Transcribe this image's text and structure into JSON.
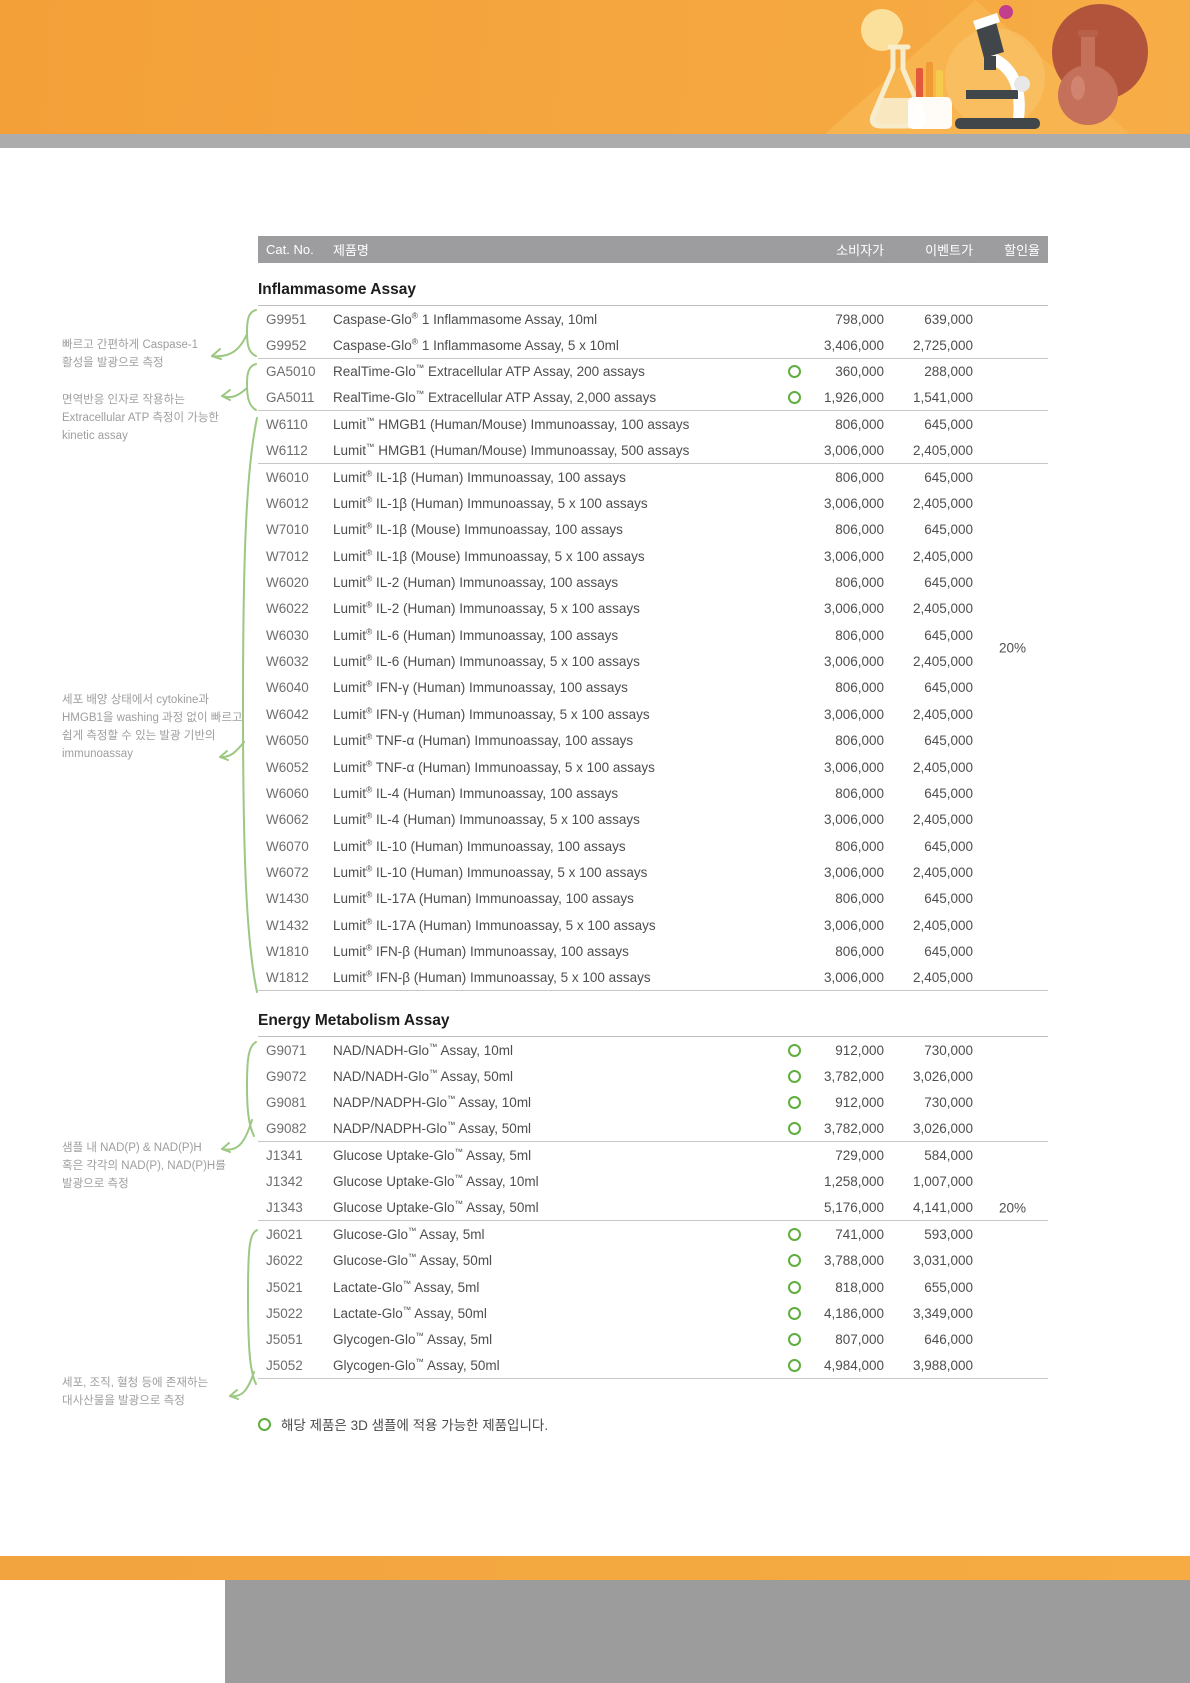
{
  "table": {
    "columns": [
      "Cat. No.",
      "제품명",
      "소비자가",
      "이벤트가",
      "할인율"
    ]
  },
  "sections": [
    {
      "title": "Inflammasome Assay",
      "discount": "20%",
      "rows": [
        {
          "cat": "G9951",
          "name": "Caspase-Glo® 1 Inflammasome Assay, 10ml",
          "consumer_price": "798,000",
          "event_price": "639,000",
          "is_3d": false,
          "group_end": false
        },
        {
          "cat": "G9952",
          "name": "Caspase-Glo® 1 Inflammasome Assay, 5 x 10ml",
          "consumer_price": "3,406,000",
          "event_price": "2,725,000",
          "is_3d": false,
          "group_end": true
        },
        {
          "cat": "GA5010",
          "name": "RealTime-Glo™ Extracellular ATP Assay, 200 assays",
          "consumer_price": "360,000",
          "event_price": "288,000",
          "is_3d": true,
          "group_end": false
        },
        {
          "cat": "GA5011",
          "name": "RealTime-Glo™ Extracellular ATP Assay, 2,000 assays",
          "consumer_price": "1,926,000",
          "event_price": "1,541,000",
          "is_3d": true,
          "group_end": true
        },
        {
          "cat": "W6110",
          "name": "Lumit™ HMGB1 (Human/Mouse) Immunoassay, 100 assays",
          "consumer_price": "806,000",
          "event_price": "645,000",
          "is_3d": false,
          "group_end": false
        },
        {
          "cat": "W6112",
          "name": "Lumit™ HMGB1 (Human/Mouse) Immunoassay, 500 assays",
          "consumer_price": "3,006,000",
          "event_price": "2,405,000",
          "is_3d": false,
          "group_end": true
        },
        {
          "cat": "W6010",
          "name": "Lumit® IL-1β (Human) Immunoassay, 100 assays",
          "consumer_price": "806,000",
          "event_price": "645,000",
          "is_3d": false,
          "group_end": false
        },
        {
          "cat": "W6012",
          "name": "Lumit® IL-1β (Human) Immunoassay, 5 x 100 assays",
          "consumer_price": "3,006,000",
          "event_price": "2,405,000",
          "is_3d": false,
          "group_end": false
        },
        {
          "cat": "W7010",
          "name": "Lumit® IL-1β (Mouse) Immunoassay, 100 assays",
          "consumer_price": "806,000",
          "event_price": "645,000",
          "is_3d": false,
          "group_end": false
        },
        {
          "cat": "W7012",
          "name": "Lumit® IL-1β (Mouse) Immunoassay, 5 x 100 assays",
          "consumer_price": "3,006,000",
          "event_price": "2,405,000",
          "is_3d": false,
          "group_end": false
        },
        {
          "cat": "W6020",
          "name": "Lumit® IL-2 (Human) Immunoassay, 100 assays",
          "consumer_price": "806,000",
          "event_price": "645,000",
          "is_3d": false,
          "group_end": false
        },
        {
          "cat": "W6022",
          "name": "Lumit® IL-2 (Human) Immunoassay, 5 x 100 assays",
          "consumer_price": "3,006,000",
          "event_price": "2,405,000",
          "is_3d": false,
          "group_end": false
        },
        {
          "cat": "W6030",
          "name": "Lumit® IL-6 (Human) Immunoassay, 100 assays",
          "consumer_price": "806,000",
          "event_price": "645,000",
          "is_3d": false,
          "group_end": false
        },
        {
          "cat": "W6032",
          "name": "Lumit® IL-6 (Human) Immunoassay, 5 x 100 assays",
          "consumer_price": "3,006,000",
          "event_price": "2,405,000",
          "is_3d": false,
          "group_end": false
        },
        {
          "cat": "W6040",
          "name": "Lumit® IFN-γ (Human) Immunoassay, 100 assays",
          "consumer_price": "806,000",
          "event_price": "645,000",
          "is_3d": false,
          "group_end": false
        },
        {
          "cat": "W6042",
          "name": "Lumit® IFN-γ (Human) Immunoassay, 5 x 100 assays",
          "consumer_price": "3,006,000",
          "event_price": "2,405,000",
          "is_3d": false,
          "group_end": false
        },
        {
          "cat": "W6050",
          "name": "Lumit® TNF-α (Human) Immunoassay, 100 assays",
          "consumer_price": "806,000",
          "event_price": "645,000",
          "is_3d": false,
          "group_end": false
        },
        {
          "cat": "W6052",
          "name": "Lumit® TNF-α (Human) Immunoassay, 5 x 100 assays",
          "consumer_price": "3,006,000",
          "event_price": "2,405,000",
          "is_3d": false,
          "group_end": false
        },
        {
          "cat": "W6060",
          "name": "Lumit® IL-4 (Human) Immunoassay, 100 assays",
          "consumer_price": "806,000",
          "event_price": "645,000",
          "is_3d": false,
          "group_end": false
        },
        {
          "cat": "W6062",
          "name": "Lumit® IL-4 (Human) Immunoassay, 5 x 100 assays",
          "consumer_price": "3,006,000",
          "event_price": "2,405,000",
          "is_3d": false,
          "group_end": false
        },
        {
          "cat": "W6070",
          "name": "Lumit® IL-10 (Human) Immunoassay, 100 assays",
          "consumer_price": "806,000",
          "event_price": "645,000",
          "is_3d": false,
          "group_end": false
        },
        {
          "cat": "W6072",
          "name": "Lumit® IL-10 (Human) Immunoassay, 5 x 100 assays",
          "consumer_price": "3,006,000",
          "event_price": "2,405,000",
          "is_3d": false,
          "group_end": false
        },
        {
          "cat": "W1430",
          "name": "Lumit® IL-17A (Human) Immunoassay, 100 assays",
          "consumer_price": "806,000",
          "event_price": "645,000",
          "is_3d": false,
          "group_end": false
        },
        {
          "cat": "W1432",
          "name": "Lumit® IL-17A (Human) Immunoassay, 5 x 100 assays",
          "consumer_price": "3,006,000",
          "event_price": "2,405,000",
          "is_3d": false,
          "group_end": false
        },
        {
          "cat": "W1810",
          "name": "Lumit® IFN-β (Human) Immunoassay, 100 assays",
          "consumer_price": "806,000",
          "event_price": "645,000",
          "is_3d": false,
          "group_end": false
        },
        {
          "cat": "W1812",
          "name": "Lumit® IFN-β (Human) Immunoassay, 5 x 100 assays",
          "consumer_price": "3,006,000",
          "event_price": "2,405,000",
          "is_3d": false,
          "group_end": true
        }
      ]
    },
    {
      "title": "Energy Metabolism Assay",
      "discount": "20%",
      "rows": [
        {
          "cat": "G9071",
          "name": "NAD/NADH-Glo™ Assay, 10ml",
          "consumer_price": "912,000",
          "event_price": "730,000",
          "is_3d": true,
          "group_end": false
        },
        {
          "cat": "G9072",
          "name": "NAD/NADH-Glo™ Assay, 50ml",
          "consumer_price": "3,782,000",
          "event_price": "3,026,000",
          "is_3d": true,
          "group_end": false
        },
        {
          "cat": "G9081",
          "name": "NADP/NADPH-Glo™ Assay, 10ml",
          "consumer_price": "912,000",
          "event_price": "730,000",
          "is_3d": true,
          "group_end": false
        },
        {
          "cat": "G9082",
          "name": "NADP/NADPH-Glo™ Assay, 50ml",
          "consumer_price": "3,782,000",
          "event_price": "3,026,000",
          "is_3d": true,
          "group_end": true
        },
        {
          "cat": "J1341",
          "name": "Glucose Uptake-Glo™ Assay, 5ml",
          "consumer_price": "729,000",
          "event_price": "584,000",
          "is_3d": false,
          "group_end": false
        },
        {
          "cat": "J1342",
          "name": "Glucose Uptake-Glo™ Assay, 10ml",
          "consumer_price": "1,258,000",
          "event_price": "1,007,000",
          "is_3d": false,
          "group_end": false
        },
        {
          "cat": "J1343",
          "name": "Glucose Uptake-Glo™ Assay, 50ml",
          "consumer_price": "5,176,000",
          "event_price": "4,141,000",
          "is_3d": false,
          "group_end": true
        },
        {
          "cat": "J6021",
          "name": "Glucose-Glo™ Assay, 5ml",
          "consumer_price": "741,000",
          "event_price": "593,000",
          "is_3d": true,
          "group_end": false
        },
        {
          "cat": "J6022",
          "name": "Glucose-Glo™ Assay, 50ml",
          "consumer_price": "3,788,000",
          "event_price": "3,031,000",
          "is_3d": true,
          "group_end": false
        },
        {
          "cat": "J5021",
          "name": "Lactate-Glo™ Assay, 5ml",
          "consumer_price": "818,000",
          "event_price": "655,000",
          "is_3d": true,
          "group_end": false
        },
        {
          "cat": "J5022",
          "name": "Lactate-Glo™ Assay, 50ml",
          "consumer_price": "4,186,000",
          "event_price": "3,349,000",
          "is_3d": true,
          "group_end": false
        },
        {
          "cat": "J5051",
          "name": "Glycogen-Glo™ Assay, 5ml",
          "consumer_price": "807,000",
          "event_price": "646,000",
          "is_3d": true,
          "group_end": false
        },
        {
          "cat": "J5052",
          "name": "Glycogen-Glo™ Assay, 50ml",
          "consumer_price": "4,984,000",
          "event_price": "3,988,000",
          "is_3d": true,
          "group_end": true
        }
      ]
    }
  ],
  "annotations": [
    {
      "text": "빠르고 간편하게 Caspase-1\n활성을 발광으로 측정"
    },
    {
      "text": "면역반응 인자로 작용하는\nExtracellular ATP 측정이 가능한\nkinetic assay"
    },
    {
      "text": "세포 배양 상태에서 cytokine과\nHMGB1을 washing 과정 없이 빠르고\n쉽게 측정할 수 있는 발광 기반의\nimmunoassay"
    },
    {
      "text": "샘플 내 NAD(P) & NAD(P)H\n혹은 각각의 NAD(P), NAD(P)H를\n발광으로 측정"
    },
    {
      "text": "세포, 조직, 혈청 등에 존재하는\n대사산물을 발광으로 측정"
    }
  ],
  "footnote": {
    "text": "해당 제품은 3D 샘플에 적용 가능한 제품입니다."
  },
  "icons": [
    "erlenmeyer-flask-icon",
    "test-tube-rack-icon",
    "microscope-icon",
    "round-bottom-flask-icon",
    "magenta-dot-icon",
    "3d-sample-marker-icon"
  ],
  "colors": {
    "accent-orange": "#F4A039",
    "banner-gray": "#ACACAC",
    "table-header-gray": "#9D9DA0",
    "marker-green": "#5FAE3E",
    "annotation-green": "#9CC883",
    "text-gray": "#9E9E9E"
  }
}
